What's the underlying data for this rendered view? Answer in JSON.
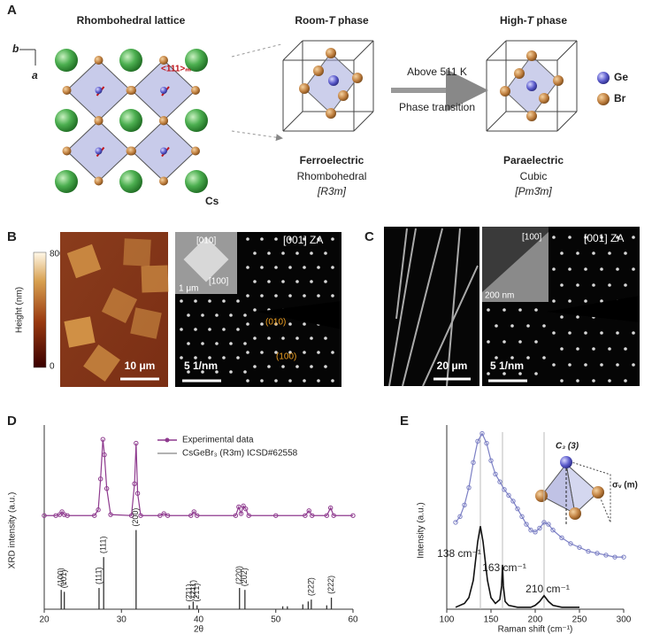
{
  "panel_labels": [
    "A",
    "B",
    "C",
    "D",
    "E"
  ],
  "panel_a": {
    "lattice_title": "Rhombohedral lattice",
    "axis_b": "b",
    "axis_a": "a",
    "direction": "<111>ₘ",
    "cs": "Cs",
    "room_title": [
      "Room-",
      "T",
      " phase"
    ],
    "high_title": [
      "High-",
      "T",
      " phase"
    ],
    "arrow_top": "Above 511 K",
    "arrow_bottom": "Phase transition",
    "legend": [
      "Ge",
      "Br"
    ],
    "room_props": [
      "Ferroelectric",
      "Rhombohedral",
      "[R3m]"
    ],
    "high_props": [
      "Paraelectric",
      "Cubic",
      "[Pm3̄m]"
    ]
  },
  "panel_b": {
    "colorbar_max": 800,
    "colorbar_min": 0,
    "colorbar_label": "Height (nm)",
    "afm_scale": "10 μm",
    "ed_scale": "5 1/nm",
    "ed_zone": "[001] ZA",
    "inset_dirs": [
      "[010]",
      "[100]"
    ],
    "inset_scale": "1 μm",
    "spots": [
      "(010)",
      "(100)"
    ]
  },
  "panel_c": {
    "sem_scale": "20 μm",
    "ed_scale": "5 1/nm",
    "ed_zone": "[001] ZA",
    "inset_dir": "[100]",
    "inset_scale": "200 nm"
  },
  "panel_e_inset": {
    "axis": "C₃ (3)",
    "plane": "σᵥ (m)"
  },
  "chart_data": [
    {
      "type": "line",
      "ylabel": "XRD intensity (a.u.)",
      "xlabel": "2θ",
      "xlim": [
        20,
        60
      ],
      "xticks": [
        20,
        30,
        40,
        50,
        60
      ],
      "ylim": [
        0,
        200
      ],
      "legend": "top",
      "series": [
        {
          "name": "Experimental data",
          "color": "#8e3a8e",
          "style": "markers",
          "x": [
            20,
            21.5,
            22.0,
            22.3,
            22.6,
            23.0,
            26.5,
            27.0,
            27.3,
            27.6,
            27.8,
            28.1,
            28.6,
            31.3,
            31.7,
            31.9,
            32.1,
            32.5,
            35,
            35.5,
            36,
            39,
            39.4,
            39.8,
            44.8,
            45.2,
            45.5,
            45.8,
            46.1,
            46.5,
            50,
            53.8,
            54.3,
            54.7,
            56.6,
            57.1,
            57.5,
            60
          ],
          "values": [
            97,
            97,
            98,
            101,
            98,
            97,
            97,
            103,
            135,
            176,
            160,
            125,
            98,
            97,
            130,
            172,
            120,
            97,
            97,
            99,
            97,
            97,
            101,
            97,
            97,
            106,
            99,
            107,
            104,
            97,
            97,
            97,
            102,
            97,
            97,
            105,
            97,
            97
          ]
        },
        {
          "name": "CsGeBr₃ (R3m) ICSD#62558",
          "color": "#333333",
          "style": "stems",
          "x": [
            22.2,
            22.6,
            27.1,
            27.7,
            31.9,
            38.8,
            39.3,
            39.8,
            45.3,
            46.0,
            50.9,
            51.5,
            53.5,
            54.2,
            54.6,
            56.6,
            57.2
          ],
          "values": [
            20,
            18,
            22,
            54,
            82,
            4,
            8,
            4,
            22,
            20,
            3,
            3,
            5,
            8,
            10,
            4,
            12
          ],
          "labels": [
            "(100)",
            "(101)",
            "(111̄)",
            "(111)",
            "(200)",
            "(2̄11)",
            "(211̄)",
            "(21̄1)",
            "(220)",
            "(202)",
            null,
            null,
            null,
            null,
            "(222̄)",
            null,
            "(222)"
          ]
        }
      ]
    },
    {
      "type": "line",
      "ylabel": "Intensity (a.u.)",
      "xlabel": "Raman shift (cm⁻¹)",
      "xlim": [
        100,
        300
      ],
      "xticks": [
        100,
        150,
        200,
        250,
        300
      ],
      "ylim": [
        0,
        100
      ],
      "series": [
        {
          "color": "#7b7fc4",
          "style": "markers",
          "x": [
            110,
            115,
            120,
            125,
            130,
            135,
            140,
            145,
            150,
            155,
            160,
            165,
            170,
            175,
            180,
            185,
            190,
            195,
            200,
            205,
            210,
            215,
            220,
            230,
            240,
            250,
            260,
            270,
            280,
            290,
            300
          ],
          "values": [
            45,
            48,
            54,
            63,
            76,
            87,
            91,
            86,
            77,
            70,
            66,
            62,
            59,
            56,
            52,
            48,
            44,
            41,
            40,
            42,
            45,
            44,
            41,
            37,
            34,
            32,
            30,
            29,
            28,
            27,
            27
          ]
        },
        {
          "color": "#111111",
          "style": "line",
          "x": [
            110,
            120,
            125,
            130,
            135,
            138,
            141,
            146,
            150,
            155,
            160,
            162,
            163,
            164,
            166,
            170,
            180,
            195,
            200,
            205,
            210,
            215,
            220,
            230,
            250
          ],
          "values": [
            1,
            3,
            6,
            15,
            35,
            43,
            35,
            15,
            6,
            3,
            5,
            12,
            23,
            12,
            4,
            2,
            1,
            1,
            2,
            4,
            7,
            4,
            2,
            1,
            1
          ]
        }
      ],
      "peaks": [
        138,
        163,
        210
      ],
      "peak_labels": [
        "138 cm⁻¹",
        "163 cm⁻¹",
        "210 cm⁻¹"
      ]
    }
  ]
}
